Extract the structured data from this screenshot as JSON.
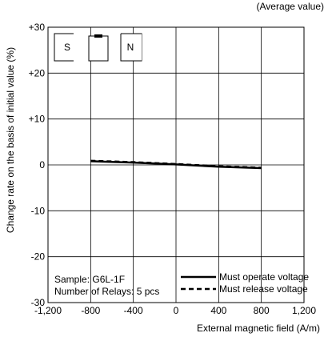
{
  "chart_data": {
    "type": "line",
    "note": "(Average value)",
    "xlabel": "External magnetic field (A/m)",
    "ylabel": "Change rate on the basis of initial value (%)",
    "xlim": [
      -1200,
      1200
    ],
    "ylim": [
      -30,
      30
    ],
    "x_ticks": [
      {
        "value": -1200,
        "label": "-1,200"
      },
      {
        "value": -800,
        "label": "-800"
      },
      {
        "value": -400,
        "label": "-400"
      },
      {
        "value": 0,
        "label": "0"
      },
      {
        "value": 400,
        "label": "400"
      },
      {
        "value": 800,
        "label": "800"
      },
      {
        "value": 1200,
        "label": "1,200"
      }
    ],
    "y_ticks": [
      {
        "value": 30,
        "label": "+30"
      },
      {
        "value": 20,
        "label": "+20"
      },
      {
        "value": 10,
        "label": "+10"
      },
      {
        "value": 0,
        "label": "0"
      },
      {
        "value": -10,
        "label": "-10"
      },
      {
        "value": -20,
        "label": "-20"
      },
      {
        "value": -30,
        "label": "-30"
      }
    ],
    "grid": true,
    "series": [
      {
        "name": "Must operate voltage",
        "style": "solid",
        "x": [
          -800,
          -400,
          0,
          400,
          800
        ],
        "y": [
          0.8,
          0.5,
          0.1,
          -0.4,
          -0.7
        ]
      },
      {
        "name": "Must release voltage",
        "style": "dashed",
        "x": [
          -800,
          -400,
          0,
          400,
          800
        ],
        "y": [
          0.9,
          0.6,
          0.2,
          -0.3,
          -0.6
        ]
      }
    ],
    "sample_text": "Sample: G6L-1F",
    "relays_text": "Number of Relays: 5 pcs",
    "magnet_labels": {
      "left": "S",
      "right": "N"
    }
  }
}
